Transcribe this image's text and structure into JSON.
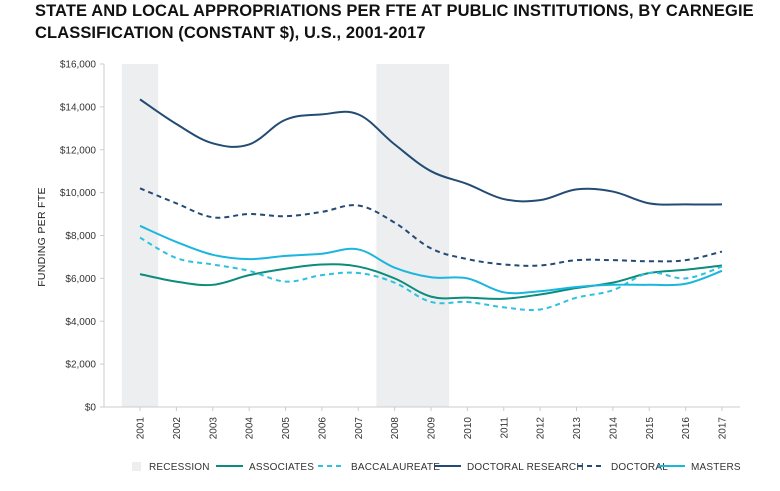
{
  "title": "STATE AND LOCAL APPROPRIATIONS PER FTE AT PUBLIC INSTITUTIONS, BY CARNEGIE CLASSIFICATION (CONSTANT $), U.S., 2001-2017",
  "colors": {
    "recession": "#eceef0",
    "associates": "#0c8c7a",
    "baccalaureate": "#2fc0e0",
    "doctoral_research": "#234b74",
    "doctoral": "#234b74",
    "masters": "#1ab6df",
    "axis": "#cccccc",
    "grid": "#e6e6e6"
  },
  "chart_data": {
    "type": "line",
    "title": "STATE AND LOCAL APPROPRIATIONS PER FTE AT PUBLIC INSTITUTIONS, BY CARNEGIE CLASSIFICATION (CONSTANT $), U.S., 2001-2017",
    "xlabel": "",
    "ylabel": "FUNDING PER FTE",
    "x": [
      "2001",
      "2002",
      "2003",
      "2004",
      "2005",
      "2006",
      "2007",
      "2008",
      "2009",
      "2010",
      "2011",
      "2012",
      "2013",
      "2014",
      "2015",
      "2016",
      "2017"
    ],
    "y_ticks": [
      "$0",
      "$2,000",
      "$4,000",
      "$6,000",
      "$8,000",
      "$10,000",
      "$12,000",
      "$14,000",
      "$16,000"
    ],
    "ylim": [
      0,
      16000
    ],
    "recessions": [
      [
        "2001",
        "2001"
      ],
      [
        "2008",
        "2009"
      ]
    ],
    "legend_position": "bottom",
    "grid": false,
    "series": [
      {
        "name": "ASSOCIATES",
        "style": "solid",
        "color": "#0c8c7a",
        "values": [
          6200,
          5850,
          5700,
          6150,
          6450,
          6650,
          6550,
          6000,
          5150,
          5100,
          5050,
          5250,
          5550,
          5800,
          6250,
          6400,
          6600
        ]
      },
      {
        "name": "BACCALAUREATE",
        "style": "dashed",
        "color": "#2fc0e0",
        "values": [
          7900,
          6950,
          6650,
          6350,
          5850,
          6150,
          6250,
          5800,
          4900,
          4900,
          4650,
          4550,
          5100,
          5450,
          6250,
          6000,
          6550
        ]
      },
      {
        "name": "DOCTORAL RESEARCH",
        "style": "solid",
        "color": "#234b74",
        "values": [
          14350,
          13200,
          12300,
          12250,
          13400,
          13650,
          13650,
          12250,
          11000,
          10400,
          9700,
          9650,
          10150,
          10050,
          9500,
          9450,
          9450
        ]
      },
      {
        "name": "DOCTORAL",
        "style": "dashed",
        "color": "#234b74",
        "values": [
          10200,
          9500,
          8850,
          9000,
          8900,
          9100,
          9400,
          8600,
          7400,
          6900,
          6650,
          6600,
          6850,
          6850,
          6800,
          6850,
          7250
        ]
      },
      {
        "name": "MASTERS",
        "style": "solid",
        "color": "#1ab6df",
        "values": [
          8450,
          7700,
          7100,
          6900,
          7050,
          7150,
          7350,
          6500,
          6050,
          6000,
          5350,
          5400,
          5600,
          5700,
          5700,
          5750,
          6350
        ]
      }
    ],
    "legend": [
      "RECESSION",
      "ASSOCIATES",
      "BACCALAUREATE",
      "DOCTORAL RESEARCH",
      "DOCTORAL",
      "MASTERS"
    ]
  }
}
